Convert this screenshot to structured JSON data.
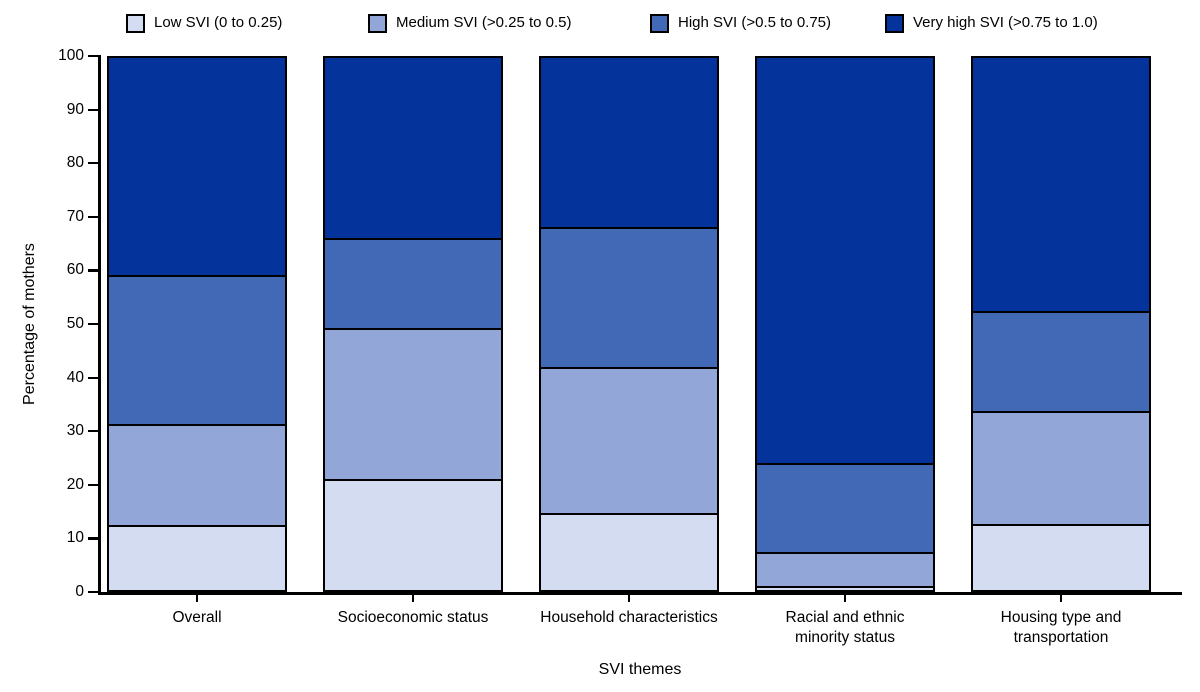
{
  "chart_data": {
    "type": "bar",
    "stacked": true,
    "orientation": "vertical",
    "title": "",
    "xlabel": "SVI themes",
    "ylabel": "Percentage of mothers",
    "ylim": [
      0,
      100
    ],
    "ytick_step": 10,
    "grid": false,
    "legend_position": "top",
    "outline_color": "#000000",
    "categories": [
      "Overall",
      "Socioeconomic status",
      "Household characteristics",
      "Racial and ethnic\nminority status",
      "Housing type and\ntransportation"
    ],
    "series": [
      {
        "name": "Low SVI (0 to 0.25)",
        "color": "#d3dcf0",
        "values": [
          12.2,
          20.7,
          14.4,
          0.7,
          12.3
        ]
      },
      {
        "name": "Medium SVI (>0.25 to 0.5)",
        "color": "#92a7d8",
        "values": [
          18.7,
          28.2,
          27.2,
          6.3,
          21.1
        ]
      },
      {
        "name": "High SVI (>0.5 to 0.75)",
        "color": "#4269b5",
        "values": [
          27.8,
          16.7,
          26.2,
          16.7,
          18.6
        ]
      },
      {
        "name": "Very high SVI (>0.75 to 1.0)",
        "color": "#04339b",
        "values": [
          41.3,
          34.4,
          32.2,
          76.3,
          48.0
        ]
      }
    ]
  }
}
